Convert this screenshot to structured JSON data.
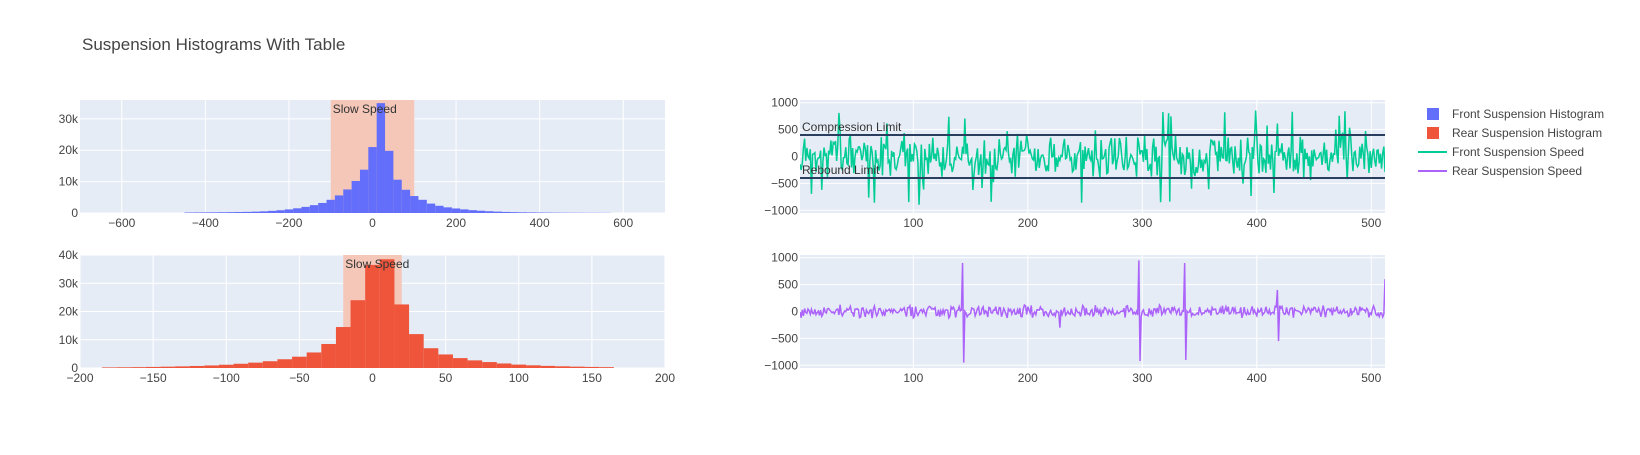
{
  "page_title": "Suspension Histograms With Table",
  "colors": {
    "front": "#636efa",
    "rear": "#ef553b",
    "front_speed": "#00cc96",
    "rear_speed": "#ab63fa",
    "band": "#f4c7b8",
    "plot_bg": "#e5ecf6",
    "limit": "#2a3f5f"
  },
  "legend": [
    {
      "label": "Front Suspension Histogram",
      "kind": "square",
      "color_key": "front"
    },
    {
      "label": "Rear Suspension Histogram",
      "kind": "square",
      "color_key": "rear"
    },
    {
      "label": "Front Suspension Speed",
      "kind": "line",
      "color_key": "front_speed"
    },
    {
      "label": "Rear Suspension Speed",
      "kind": "line",
      "color_key": "rear_speed"
    }
  ],
  "chart_data": [
    {
      "type": "bar",
      "series_ref": "Front Suspension Histogram",
      "color_key": "front",
      "xlim": [
        -700,
        700
      ],
      "ylim": [
        0,
        36000
      ],
      "xticks": [
        -600,
        -400,
        -200,
        0,
        200,
        400,
        600
      ],
      "yticks": [
        0,
        10000,
        20000,
        30000
      ],
      "ytick_labels": [
        "0",
        "10k",
        "20k",
        "30k"
      ],
      "bin_width": 20,
      "bins": [
        [
          -440,
          150
        ],
        [
          -420,
          170
        ],
        [
          -400,
          190
        ],
        [
          -380,
          210
        ],
        [
          -360,
          240
        ],
        [
          -340,
          270
        ],
        [
          -320,
          310
        ],
        [
          -300,
          360
        ],
        [
          -280,
          430
        ],
        [
          -260,
          530
        ],
        [
          -240,
          680
        ],
        [
          -220,
          880
        ],
        [
          -200,
          1150
        ],
        [
          -180,
          1500
        ],
        [
          -160,
          1950
        ],
        [
          -140,
          2500
        ],
        [
          -120,
          3200
        ],
        [
          -100,
          4200
        ],
        [
          -80,
          5600
        ],
        [
          -60,
          7500
        ],
        [
          -40,
          10200
        ],
        [
          -20,
          13800
        ],
        [
          0,
          21000
        ],
        [
          20,
          35000
        ],
        [
          40,
          19800
        ],
        [
          60,
          10600
        ],
        [
          80,
          7400
        ],
        [
          100,
          5400
        ],
        [
          120,
          4200
        ],
        [
          140,
          3000
        ],
        [
          160,
          2300
        ],
        [
          180,
          1800
        ],
        [
          200,
          1450
        ],
        [
          220,
          1150
        ],
        [
          240,
          900
        ],
        [
          260,
          720
        ],
        [
          280,
          560
        ],
        [
          300,
          440
        ],
        [
          320,
          340
        ],
        [
          340,
          270
        ],
        [
          360,
          220
        ],
        [
          380,
          180
        ],
        [
          400,
          150
        ],
        [
          420,
          130
        ],
        [
          440,
          110
        ],
        [
          460,
          95
        ],
        [
          480,
          85
        ],
        [
          500,
          75
        ],
        [
          520,
          65
        ],
        [
          540,
          60
        ],
        [
          560,
          55
        ]
      ],
      "band": {
        "x0": -100,
        "x1": 100,
        "label": "Slow Speed"
      }
    },
    {
      "type": "bar",
      "series_ref": "Rear Suspension Histogram",
      "color_key": "rear",
      "xlim": [
        -200,
        200
      ],
      "ylim": [
        0,
        40000
      ],
      "xticks": [
        -200,
        -150,
        -100,
        -50,
        0,
        50,
        100,
        150,
        200
      ],
      "yticks": [
        0,
        10000,
        20000,
        30000,
        40000
      ],
      "ytick_labels": [
        "0",
        "10k",
        "20k",
        "30k",
        "40k"
      ],
      "bin_width": 10,
      "bins": [
        [
          -180,
          200
        ],
        [
          -170,
          250
        ],
        [
          -160,
          300
        ],
        [
          -150,
          380
        ],
        [
          -140,
          470
        ],
        [
          -130,
          580
        ],
        [
          -120,
          720
        ],
        [
          -110,
          900
        ],
        [
          -100,
          1150
        ],
        [
          -90,
          1500
        ],
        [
          -80,
          1900
        ],
        [
          -70,
          2400
        ],
        [
          -60,
          3100
        ],
        [
          -50,
          4000
        ],
        [
          -40,
          5500
        ],
        [
          -30,
          8500
        ],
        [
          -20,
          14500
        ],
        [
          -10,
          24000
        ],
        [
          0,
          36500
        ],
        [
          10,
          38500
        ],
        [
          20,
          22500
        ],
        [
          30,
          12000
        ],
        [
          40,
          7000
        ],
        [
          50,
          4800
        ],
        [
          60,
          3500
        ],
        [
          70,
          2700
        ],
        [
          80,
          2100
        ],
        [
          90,
          1600
        ],
        [
          100,
          1200
        ],
        [
          110,
          950
        ],
        [
          120,
          750
        ],
        [
          130,
          600
        ],
        [
          140,
          480
        ],
        [
          150,
          380
        ],
        [
          160,
          300
        ]
      ],
      "band": {
        "x0": -20,
        "x1": 20,
        "label": "Slow Speed"
      }
    },
    {
      "type": "line",
      "series_ref": "Front Suspension Speed",
      "color_key": "front_speed",
      "xlim": [
        1,
        512
      ],
      "ylim": [
        -1050,
        1050
      ],
      "xticks": [
        100,
        200,
        300,
        400,
        500
      ],
      "yticks": [
        -1000,
        -500,
        0,
        500,
        1000
      ],
      "ytick_labels": [
        "−1000",
        "−500",
        "0",
        "500",
        "1000"
      ],
      "n_points": 512,
      "noise_amplitude": 300,
      "spike_amplitude": 950,
      "hlines": [
        {
          "y": 400,
          "label": "Compression Limit"
        },
        {
          "y": -400,
          "label": "Rebound Limit"
        }
      ]
    },
    {
      "type": "line",
      "series_ref": "Rear Suspension Speed",
      "color_key": "rear_speed",
      "xlim": [
        1,
        512
      ],
      "ylim": [
        -1050,
        1050
      ],
      "xticks": [
        100,
        200,
        300,
        400,
        500
      ],
      "yticks": [
        -1000,
        -500,
        0,
        500,
        1000
      ],
      "ytick_labels": [
        "−1000",
        "−500",
        "0",
        "500",
        "1000"
      ],
      "n_points": 512,
      "noise_amplitude": 90,
      "spikes": [
        [
          143,
          900
        ],
        [
          144,
          -950
        ],
        [
          297,
          950
        ],
        [
          298,
          -920
        ],
        [
          337,
          900
        ],
        [
          338,
          -900
        ],
        [
          418,
          400
        ],
        [
          419,
          -550
        ],
        [
          228,
          -300
        ],
        [
          512,
          600
        ]
      ]
    }
  ]
}
